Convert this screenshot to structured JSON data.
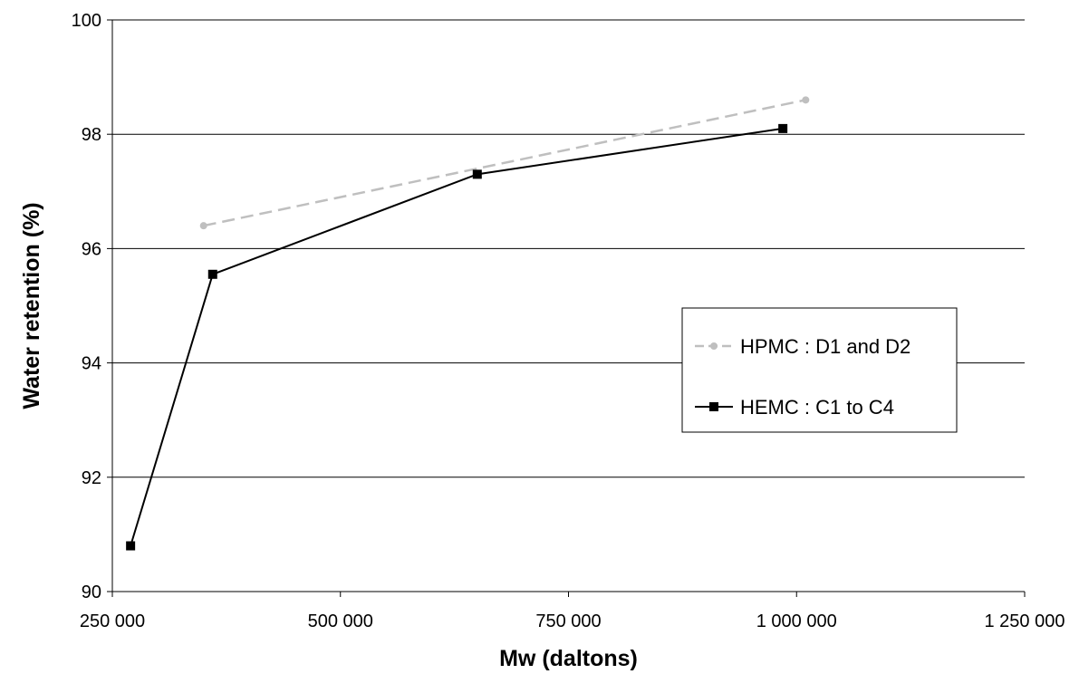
{
  "chart_data": {
    "type": "line",
    "title": "",
    "xlabel": "Mw (daltons)",
    "ylabel": "Water retention (%)",
    "xlim": [
      250000,
      1250000
    ],
    "ylim": [
      90,
      100
    ],
    "xticks": [
      250000,
      500000,
      750000,
      1000000,
      1250000
    ],
    "xtick_labels": [
      "250 000",
      "500 000",
      "750 000",
      "1 000 000",
      "1 250 000"
    ],
    "yticks": [
      90,
      92,
      94,
      96,
      98,
      100
    ],
    "ytick_labels": [
      "90",
      "92",
      "94",
      "96",
      "98",
      "100"
    ],
    "grid": "horizontal major gridlines",
    "legend_position": "right",
    "series": [
      {
        "name": "HPMC : D1 and D2",
        "color": "#bfbfbf",
        "line_style": "dashed",
        "marker": "circle",
        "x": [
          350000,
          1010000
        ],
        "y": [
          96.4,
          98.6
        ]
      },
      {
        "name": "HEMC : C1 to C4",
        "color": "#000000",
        "line_style": "solid",
        "marker": "square",
        "x": [
          270000,
          360000,
          650000,
          985000
        ],
        "y": [
          90.8,
          95.55,
          97.3,
          98.1
        ]
      }
    ]
  }
}
